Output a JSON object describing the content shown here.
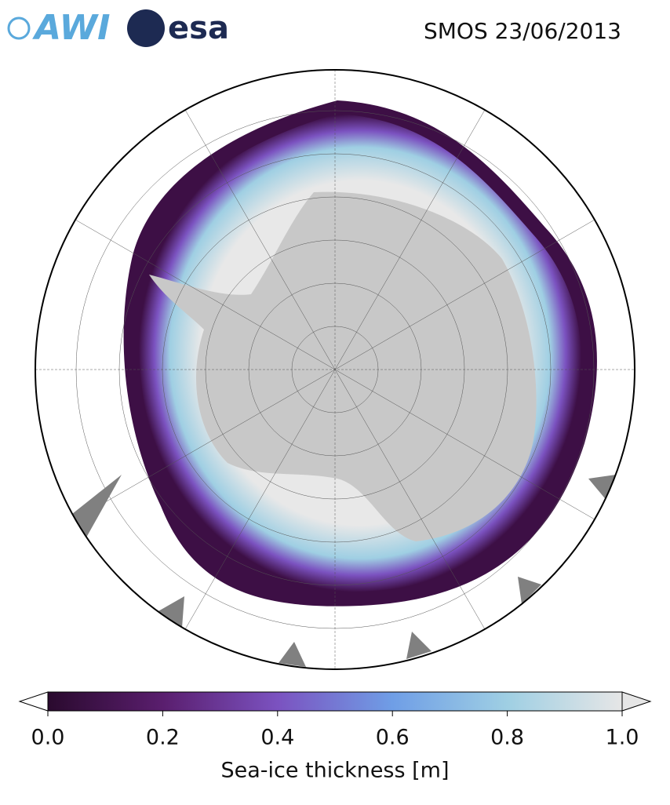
{
  "header": {
    "logos": {
      "awi": "AWI",
      "esa": "esa"
    },
    "title": "SMOS 23/06/2013"
  },
  "colorbar": {
    "label": "Sea-ice thickness [m]",
    "lim": [
      0,
      1
    ],
    "ticks": [
      {
        "value": 0,
        "label": "0.0"
      },
      0.2,
      0.4,
      0.6,
      0.8,
      {
        "value": 1,
        "label": "1.0"
      }
    ],
    "colors": [
      "#2a0a2e",
      "#5a1e6e",
      "#7b52c0",
      "#6f9ee6",
      "#9fcfe3",
      "#e6e6e6"
    ]
  }
}
